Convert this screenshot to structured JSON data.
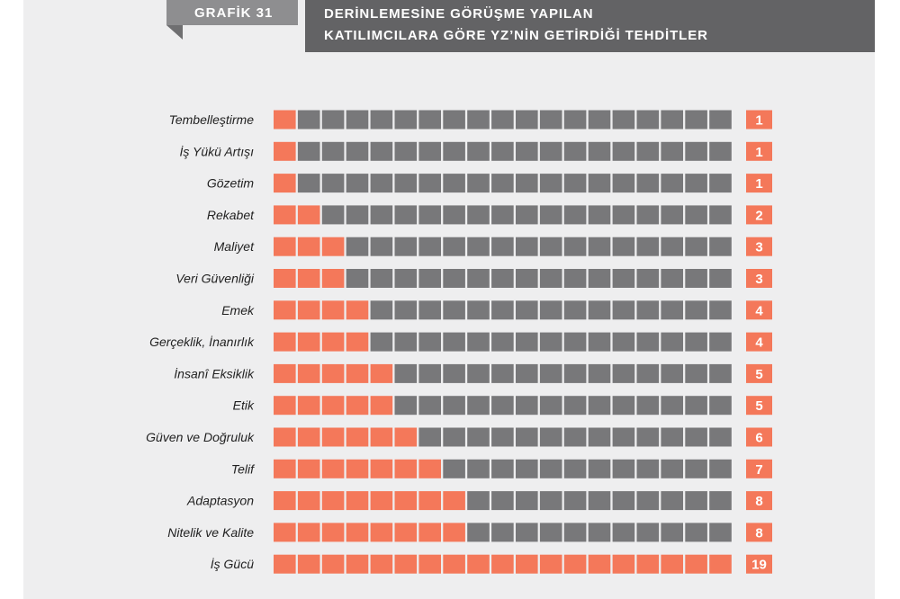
{
  "header": {
    "tag": "GRAFİK 31",
    "title_line1": "DERİNLEMESİNE GÖRÜŞME YAPILAN",
    "title_line2": "KATILIMCILARA GÖRE YZ’NİN GETİRDİĞİ TEHDİTLER"
  },
  "colors": {
    "filled": "#f4785a",
    "empty": "#78787a",
    "badge": "#f4785a"
  },
  "chart_data": {
    "type": "bar",
    "units_per_row": 19,
    "categories": [
      "Tembelleştirme",
      "İş Yükü Artışı",
      "Gözetim",
      "Rekabet",
      "Maliyet",
      "Veri Güvenliği",
      "Emek",
      "Gerçeklik, İnanırlık",
      "İnsanî Eksiklik",
      "Etik",
      "Güven ve Doğruluk",
      "Telif",
      "Adaptasyon",
      "Nitelik ve Kalite",
      "İş Gücü"
    ],
    "values": [
      1,
      1,
      1,
      2,
      3,
      3,
      4,
      4,
      5,
      5,
      6,
      7,
      8,
      8,
      19
    ]
  }
}
